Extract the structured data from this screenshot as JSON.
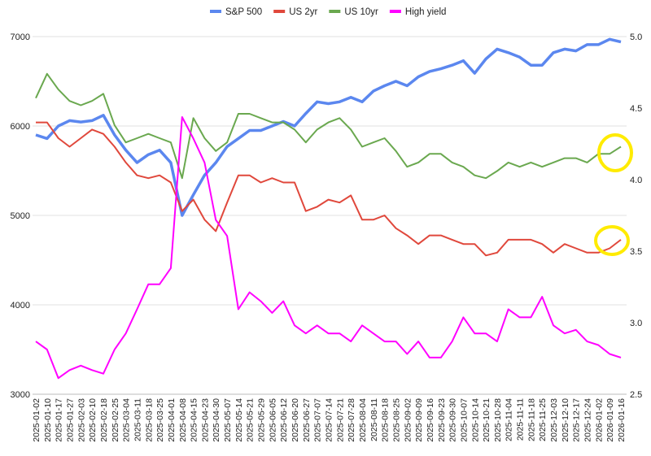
{
  "chart_data": {
    "type": "line",
    "title": "",
    "legend_position": "top",
    "grid": true,
    "left_axis": {
      "ylim": [
        3000,
        7000
      ],
      "ticks": [
        "3000",
        "4000",
        "5000",
        "6000",
        "7000"
      ]
    },
    "right_axis": {
      "ylim": [
        2.5,
        5.0
      ],
      "ticks": [
        "2.5",
        "3.0",
        "3.5",
        "4.0",
        "4.5",
        "5.0"
      ]
    },
    "x": [
      "2025-01-02",
      "2025-01-10",
      "2025-01-17",
      "2025-01-27",
      "2025-02-03",
      "2025-02-10",
      "2025-02-18",
      "2025-02-25",
      "2025-03-04",
      "2025-03-11",
      "2025-03-18",
      "2025-03-25",
      "2025-04-01",
      "2025-04-08",
      "2025-04-15",
      "2025-04-23",
      "2025-04-30",
      "2025-05-07",
      "2025-05-14",
      "2025-05-21",
      "2025-05-29",
      "2025-06-05",
      "2025-06-12",
      "2025-06-20",
      "2025-06-27",
      "2025-07-07",
      "2025-07-14",
      "2025-07-21",
      "2025-07-28",
      "2025-08-04",
      "2025-08-11",
      "2025-08-18",
      "2025-08-25",
      "2025-09-02",
      "2025-09-09",
      "2025-09-16",
      "2025-09-23",
      "2025-09-30",
      "2025-10-07",
      "2025-10-14",
      "2025-10-21",
      "2025-10-28",
      "2025-11-04",
      "2025-11-11",
      "2025-11-18",
      "2025-11-25",
      "2025-12-03",
      "2025-12-10",
      "2025-12-17",
      "2025-12-24",
      "2026-01-02",
      "2026-01-09",
      "2026-01-16"
    ],
    "series": [
      {
        "name": "S&P 500",
        "axis": "left",
        "color": "#5b87ef",
        "values": [
          5900,
          5860,
          6000,
          6060,
          6045,
          6060,
          6120,
          5900,
          5730,
          5590,
          5680,
          5730,
          5590,
          5000,
          5230,
          5450,
          5590,
          5770,
          5860,
          5950,
          5950,
          6000,
          6050,
          6000,
          6140,
          6270,
          6250,
          6270,
          6320,
          6270,
          6390,
          6450,
          6500,
          6450,
          6550,
          6610,
          6640,
          6680,
          6730,
          6590,
          6750,
          6860,
          6820,
          6770,
          6680,
          6680,
          6820,
          6860,
          6840,
          6910,
          6910,
          6970,
          6940
        ]
      },
      {
        "name": "US 2yr",
        "axis": "right",
        "color": "#e0483c",
        "values": [
          4.4,
          4.4,
          4.29,
          4.23,
          4.29,
          4.35,
          4.32,
          4.23,
          4.12,
          4.03,
          4.01,
          4.03,
          3.98,
          3.78,
          3.86,
          3.72,
          3.64,
          3.84,
          4.03,
          4.03,
          3.98,
          4.01,
          3.98,
          3.98,
          3.78,
          3.81,
          3.86,
          3.84,
          3.89,
          3.72,
          3.72,
          3.75,
          3.66,
          3.61,
          3.55,
          3.61,
          3.61,
          3.58,
          3.55,
          3.55,
          3.47,
          3.49,
          3.58,
          3.58,
          3.58,
          3.55,
          3.49,
          3.55,
          3.52,
          3.49,
          3.49,
          3.52,
          3.58
        ]
      },
      {
        "name": "US 10yr",
        "axis": "right",
        "color": "#6aa84f",
        "values": [
          4.57,
          4.74,
          4.63,
          4.55,
          4.52,
          4.55,
          4.6,
          4.38,
          4.26,
          4.29,
          4.32,
          4.29,
          4.26,
          4.01,
          4.43,
          4.29,
          4.2,
          4.26,
          4.46,
          4.46,
          4.43,
          4.4,
          4.4,
          4.35,
          4.26,
          4.35,
          4.4,
          4.43,
          4.35,
          4.23,
          4.26,
          4.29,
          4.2,
          4.09,
          4.12,
          4.18,
          4.18,
          4.12,
          4.09,
          4.03,
          4.01,
          4.06,
          4.12,
          4.09,
          4.12,
          4.09,
          4.12,
          4.15,
          4.15,
          4.12,
          4.18,
          4.18,
          4.23
        ]
      },
      {
        "name": "High yield",
        "axis": "left",
        "color": "#ff00ff",
        "values": [
          3590,
          3500,
          3180,
          3270,
          3320,
          3270,
          3230,
          3500,
          3680,
          3950,
          4230,
          4230,
          4410,
          6100,
          5860,
          5590,
          4950,
          4770,
          3950,
          4140,
          4040,
          3910,
          4040,
          3770,
          3680,
          3770,
          3680,
          3680,
          3590,
          3770,
          3680,
          3590,
          3590,
          3450,
          3590,
          3410,
          3410,
          3590,
          3860,
          3680,
          3680,
          3590,
          3950,
          3860,
          3860,
          4090,
          3770,
          3680,
          3720,
          3590,
          3550,
          3450,
          3410
        ]
      }
    ]
  }
}
